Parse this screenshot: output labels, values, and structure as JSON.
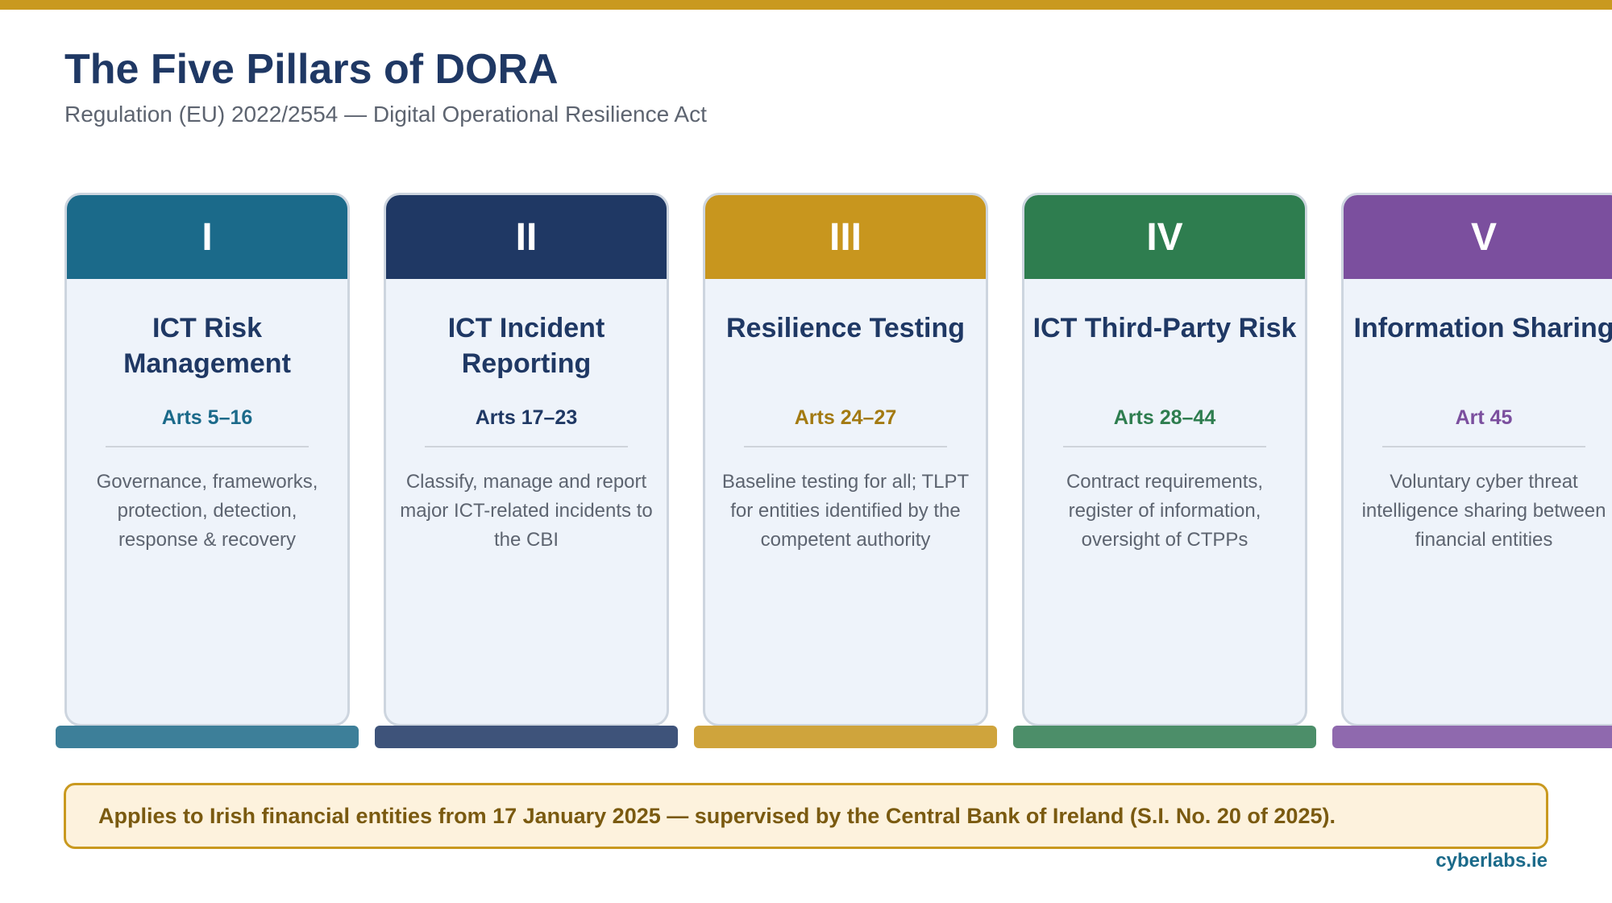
{
  "header": {
    "title": "The Five Pillars of DORA",
    "subtitle": "Regulation (EU) 2022/2554 — Digital Operational Resilience Act"
  },
  "pillars": [
    {
      "numeral": "I",
      "name": "ICT Risk Management",
      "arts": "Arts 5–16",
      "description": "Governance, frameworks, protection, detection, response & recovery",
      "color": "#1b6a8a",
      "base_color": "#3d7f99"
    },
    {
      "numeral": "II",
      "name": "ICT Incident Reporting",
      "arts": "Arts 17–23",
      "description": "Classify, manage and report major ICT-related incidents to the CBI",
      "color": "#1f3864",
      "base_color": "#3e537a"
    },
    {
      "numeral": "III",
      "name": "Resilience Testing",
      "arts": "Arts 24–27",
      "description": "Baseline testing for all; TLPT for entities identified by the competent authority",
      "color": "#c8961e",
      "arts_color": "#a37a12",
      "base_color": "#cfa43c"
    },
    {
      "numeral": "IV",
      "name": "ICT Third-Party Risk",
      "arts": "Arts 28–44",
      "description": "Contract requirements, register of information, oversight of CTPPs",
      "color": "#2e7d4f",
      "base_color": "#4c8e69"
    },
    {
      "numeral": "V",
      "name": "Information Sharing",
      "arts": "Art 45",
      "description": "Voluntary cyber threat intelligence sharing between financial entities",
      "color": "#7b4f9e",
      "base_color": "#8f69ae"
    }
  ],
  "note": {
    "text": "Applies to Irish financial entities from 17 January 2025 — supervised by the Central Bank of Ireland (S.I. No. 20 of 2025)."
  },
  "footer": {
    "brand": "cyberlabs.ie"
  }
}
